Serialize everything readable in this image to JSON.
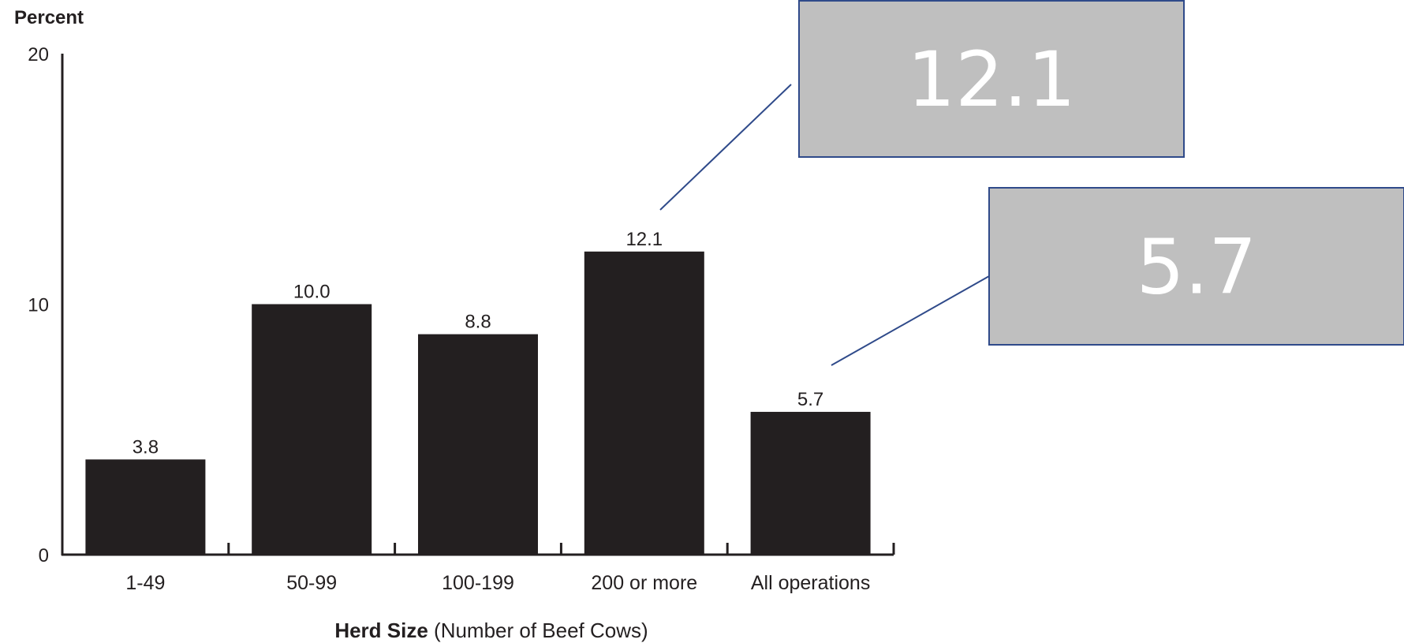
{
  "chart_data": {
    "type": "bar",
    "ylabel": "Percent",
    "xlabel_bold": "Herd Size",
    "xlabel_rest": " (Number of Beef Cows)",
    "categories": [
      "1-49",
      "50-99",
      "100-199",
      "200 or more",
      "All operations"
    ],
    "values": [
      3.8,
      10.0,
      8.8,
      12.1,
      5.7
    ],
    "value_labels": [
      "3.8",
      "10.0",
      "8.8",
      "12.1",
      "5.7"
    ],
    "ylim": [
      0,
      20
    ],
    "yticks": [
      "0",
      "10",
      "20"
    ],
    "grid": false,
    "bar_color": "#231f20"
  },
  "callouts": [
    {
      "text": "12.1",
      "target_category": "200 or more"
    },
    {
      "text": "5.7",
      "target_category": "All operations"
    }
  ],
  "colors": {
    "callout_fill": "#bfbfbf",
    "callout_border": "#2f4a8a",
    "callout_text": "#ffffff",
    "axis": "#231f20"
  }
}
